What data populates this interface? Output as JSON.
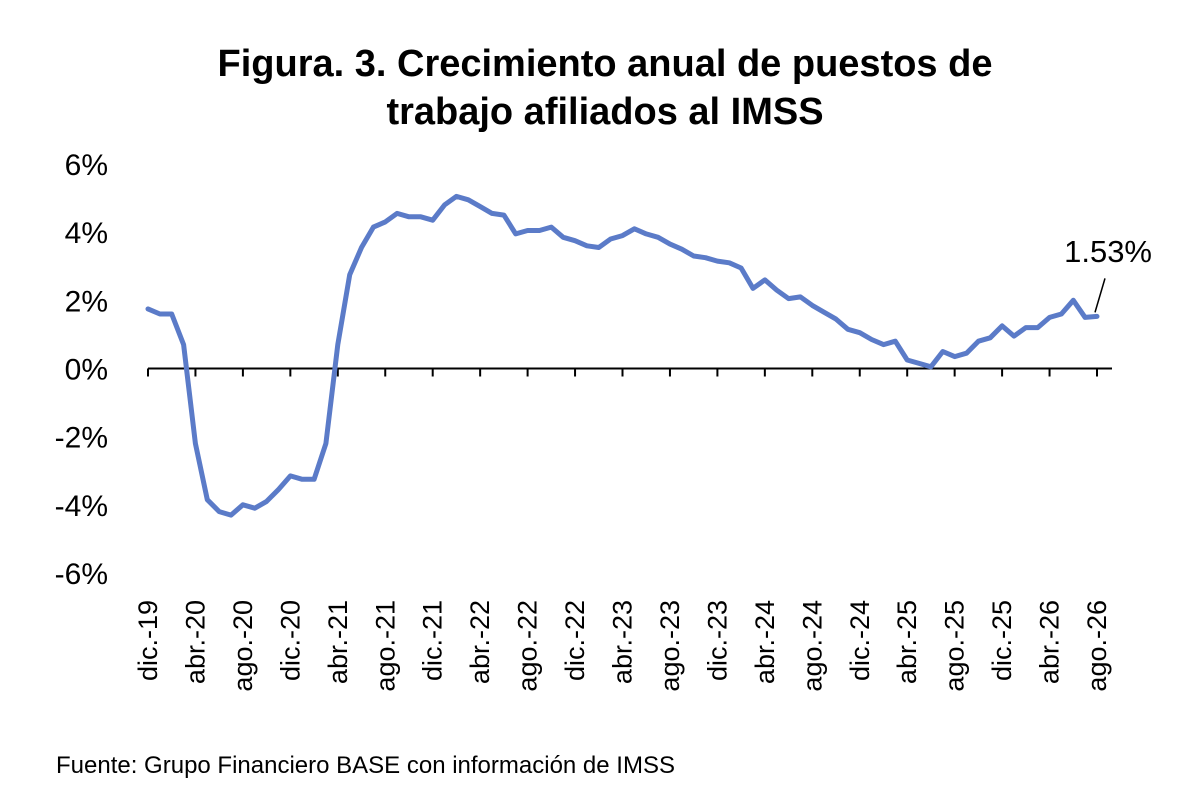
{
  "title_line1": "Figura. 3. Crecimiento anual de puestos de",
  "title_line2": "trabajo afiliados al IMSS",
  "source": "Fuente: Grupo Financiero BASE con información de IMSS",
  "colors": {
    "line": "#5B7BC8",
    "axis": "#000000"
  },
  "chart_data": {
    "type": "line",
    "title": "Figura. 3. Crecimiento anual de puestos de trabajo afiliados al IMSS",
    "xlabel": "",
    "ylabel": "",
    "ylim": [
      -6,
      6
    ],
    "y_ticks": [
      "6%",
      "4%",
      "2%",
      "0%",
      "-2%",
      "-4%",
      "-6%"
    ],
    "y_tick_values": [
      6,
      4,
      2,
      0,
      -2,
      -4,
      -6
    ],
    "x_tick_labels": [
      "dic.-19",
      "abr.-20",
      "ago.-20",
      "dic.-20",
      "abr.-21",
      "ago.-21",
      "dic.-21",
      "abr.-22",
      "ago.-22",
      "dic.-22",
      "abr.-23",
      "ago.-23",
      "dic.-23",
      "abr.-24",
      "ago.-24",
      "dic.-24",
      "abr.-25",
      "ago.-25",
      "dic.-25",
      "abr.-26",
      "ago.-26"
    ],
    "grid": false,
    "legend": "none",
    "annotation": {
      "text": "1.53%",
      "value": 1.53
    },
    "series": [
      {
        "values": [
          1.75,
          1.6,
          1.6,
          0.7,
          -2.2,
          -3.85,
          -4.2,
          -4.3,
          -4.0,
          -4.1,
          -3.9,
          -3.55,
          -3.15,
          -3.25,
          -3.25,
          -2.2,
          0.7,
          2.75,
          3.55,
          4.15,
          4.3,
          4.55,
          4.45,
          4.45,
          4.35,
          4.8,
          5.05,
          4.95,
          4.75,
          4.55,
          4.5,
          3.95,
          4.05,
          4.05,
          4.15,
          3.85,
          3.75,
          3.6,
          3.55,
          3.8,
          3.9,
          4.1,
          3.95,
          3.85,
          3.65,
          3.5,
          3.3,
          3.25,
          3.15,
          3.1,
          2.95,
          2.35,
          2.6,
          2.3,
          2.05,
          2.1,
          1.85,
          1.65,
          1.45,
          1.15,
          1.05,
          0.85,
          0.7,
          0.8,
          0.25,
          0.15,
          0.05,
          0.5,
          0.35,
          0.45,
          0.8,
          0.9,
          1.25,
          0.95,
          1.2,
          1.2,
          1.5,
          1.6,
          2.0,
          1.5,
          1.53
        ]
      }
    ]
  }
}
